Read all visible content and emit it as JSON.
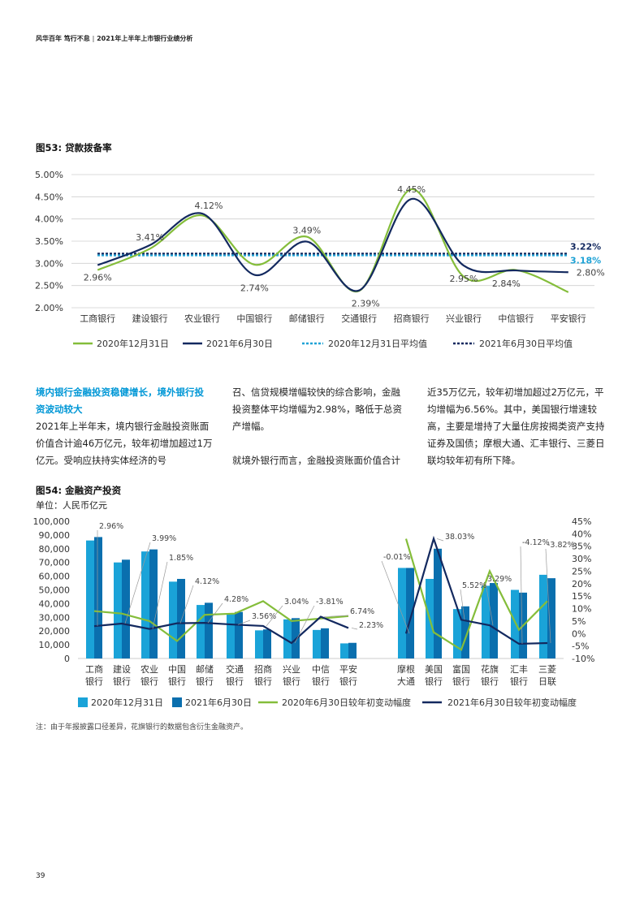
{
  "header": {
    "brand": "风华百年 笃行不怠",
    "sep": "|",
    "title": "2021年上半年上市银行业绩分析"
  },
  "fig53": {
    "title": "图53: 贷款拨备率"
  },
  "fig54": {
    "title": "图54: 金融资产投资",
    "unit": "单位：人民币亿元"
  },
  "paragraphs": {
    "col1_heading": "境内银行金融投资稳健增长，境外银行投资波动较大",
    "col1_body": "2021年上半年末，境内银行金融投资账面价值合计逾46万亿元，较年初增加超过1万亿元。受响应扶持实体经济的号",
    "col2_p1": "召、信贷规模增幅较快的综合影响，金融投资整体平均增幅为2.98%，略低于总资产增幅。",
    "col2_p2": "就境外银行而言，金融投资账面价值合计",
    "col3_body": "近35万亿元，较年初增加超过2万亿元，平均增幅为6.56%。其中，美国银行增速较高，主要是增持了大量住房按揭类资产支持证券及国债；摩根大通、汇丰银行、三菱日联均较年初有所下降。"
  },
  "note": "注：由于年报披露口径差异，花旗银行的数据包含衍生金融资产。",
  "page_number": "39",
  "colors": {
    "green": "#84bd3a",
    "navy": "#13295f",
    "cyan": "#1ea2d6",
    "lightblue": "#1aa3d8",
    "darkblue": "#0a6fae"
  },
  "chart_data": [
    {
      "type": "line",
      "title": "图53: 贷款拨备率",
      "categories": [
        "工商银行",
        "建设银行",
        "农业银行",
        "中国银行",
        "邮储银行",
        "交通银行",
        "招商银行",
        "兴业银行",
        "中信银行",
        "平安银行"
      ],
      "y_ticks": [
        "5.00%",
        "4.50%",
        "4.00%",
        "3.50%",
        "3.00%",
        "2.50%",
        "2.00%"
      ],
      "ylim": [
        2.0,
        5.0
      ],
      "series": [
        {
          "name": "2020年12月31日",
          "values": [
            2.85,
            3.33,
            4.08,
            2.97,
            3.6,
            2.38,
            4.67,
            2.7,
            2.85,
            2.35
          ]
        },
        {
          "name": "2021年6月30日",
          "values": [
            2.96,
            3.41,
            4.12,
            2.74,
            3.49,
            2.39,
            4.45,
            2.95,
            2.84,
            2.8
          ]
        }
      ],
      "averages": [
        {
          "name": "2020年12月31日平均值",
          "value": 3.18,
          "label": "3.18%"
        },
        {
          "name": "2021年6月30日平均值",
          "value": 3.22,
          "label": "3.22%"
        }
      ],
      "data_labels": [
        "2.96%",
        "3.41%",
        "4.12%",
        "2.74%",
        "3.49%",
        "2.39%",
        "4.45%",
        "2.95%",
        "2.84%",
        "2.80%"
      ]
    },
    {
      "type": "bar",
      "title": "图54: 金融资产投资",
      "categories": [
        "工商\n银行",
        "建设\n银行",
        "农业\n银行",
        "中国\n银行",
        "邮储\n银行",
        "交通\n银行",
        "招商\n银行",
        "兴业\n银行",
        "中信\n银行",
        "平安\n银行",
        "摩根\n大通",
        "美国\n银行",
        "富国\n银行",
        "花旗\n银行",
        "汇丰\n银行",
        "三菱\n日联"
      ],
      "y_ticks": [
        "100,000",
        "90,000",
        "80,000",
        "70,000",
        "60,000",
        "50,000",
        "40,000",
        "30,000",
        "20,000",
        "10,000",
        "0"
      ],
      "y2_ticks": [
        "45%",
        "40%",
        "35%",
        "30%",
        "25%",
        "20%",
        "15%",
        "10%",
        "5%",
        "0%",
        "-5%",
        "-10%"
      ],
      "ylim": [
        0,
        100000
      ],
      "y2lim": [
        -10,
        45
      ],
      "series": [
        {
          "name": "2020年12月31日",
          "kind": "bar",
          "values": [
            86000,
            70000,
            78000,
            56000,
            39000,
            32500,
            20500,
            28500,
            20800,
            11000,
            66000,
            58000,
            36000,
            53000,
            50000,
            61000
          ]
        },
        {
          "name": "2021年6月30日",
          "kind": "bar",
          "values": [
            88500,
            72000,
            79500,
            58000,
            40600,
            33900,
            21200,
            29400,
            22000,
            11400,
            66000,
            80000,
            38000,
            55000,
            48000,
            58500
          ]
        },
        {
          "name": "2020年6月30日较年初变动幅度",
          "kind": "line",
          "values": [
            9,
            8,
            5,
            -3,
            7.5,
            8,
            13,
            5,
            6,
            7,
            38,
            0.5,
            -6.5,
            25,
            1.5,
            13
          ]
        },
        {
          "name": "2021年6月30日较年初变动幅度",
          "kind": "line",
          "values": [
            2.96,
            3.99,
            1.85,
            4.12,
            4.28,
            3.56,
            3.04,
            -3.81,
            6.74,
            2.23,
            -0.01,
            38.03,
            5.52,
            3.29,
            -4.12,
            -3.82
          ]
        }
      ],
      "data_labels": [
        "2.96%",
        "3.99%",
        "1.85%",
        "4.12%",
        "4.28%",
        "3.56%",
        "3.04%",
        "-3.81%",
        "6.74%",
        "2.23%",
        "-0.01%",
        "38.03%",
        "5.52%",
        "3.29%",
        "-4.12%",
        "-3.82%"
      ]
    }
  ]
}
